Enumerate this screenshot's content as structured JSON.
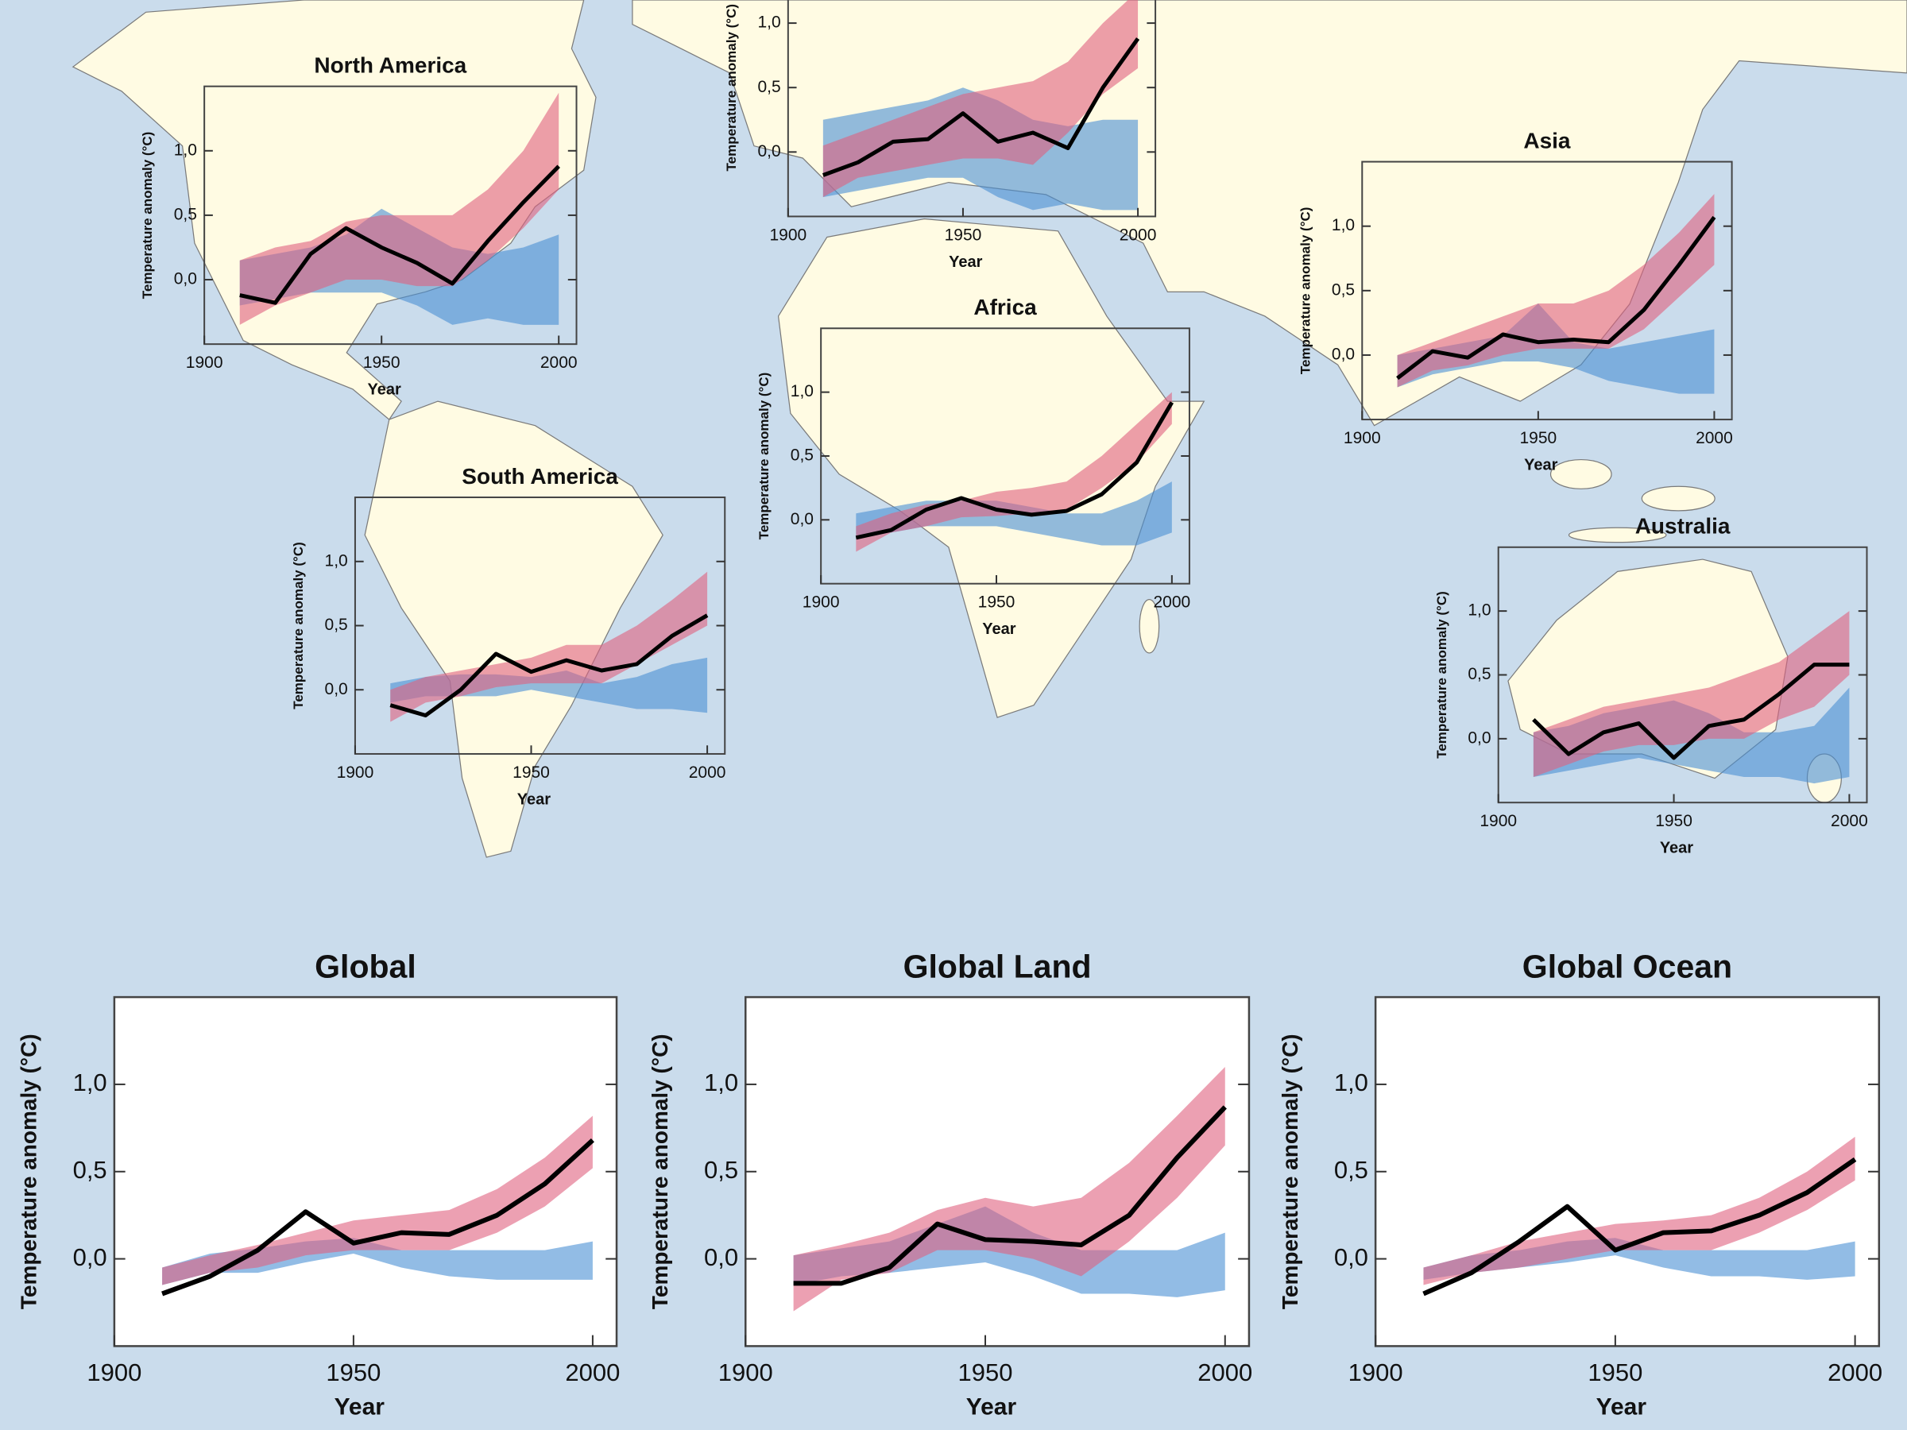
{
  "chart_data": [
    {
      "type": "line",
      "title": "North America",
      "xlabel": "Year",
      "ylabel": "Temperature anomaly (°C)",
      "x": [
        1910,
        1920,
        1930,
        1940,
        1950,
        1960,
        1970,
        1980,
        1990,
        2000
      ],
      "xlim": [
        1900,
        2005
      ],
      "ylim": [
        -0.5,
        1.5
      ],
      "xticks": [
        1900,
        1950,
        2000
      ],
      "yticks": [
        {
          "value": 0,
          "label": "0,0"
        },
        {
          "value": 0.5,
          "label": "0,5"
        },
        {
          "value": 1,
          "label": "1,0"
        }
      ],
      "series": [
        {
          "color": "#4a90d4",
          "upper": [
            0.15,
            0.2,
            0.25,
            0.35,
            0.55,
            0.4,
            0.25,
            0.2,
            0.25,
            0.35
          ],
          "lower": [
            -0.2,
            -0.15,
            -0.1,
            -0.1,
            -0.1,
            -0.2,
            -0.35,
            -0.3,
            -0.35,
            -0.35
          ]
        },
        {
          "color": "#e0607e",
          "upper": [
            0.15,
            0.25,
            0.3,
            0.45,
            0.5,
            0.5,
            0.5,
            0.7,
            1.0,
            1.45
          ],
          "lower": [
            -0.35,
            -0.2,
            -0.1,
            0.0,
            0.0,
            -0.05,
            -0.05,
            0.15,
            0.4,
            0.7
          ]
        },
        {
          "color": "#000000",
          "values": [
            -0.12,
            -0.18,
            0.2,
            0.4,
            0.25,
            0.13,
            -0.03,
            0.3,
            0.6,
            0.88
          ]
        }
      ]
    },
    {
      "type": "line",
      "xlabel": "Year",
      "ylabel": "Temperature anomaly (°C)",
      "x": [
        1910,
        1920,
        1930,
        1940,
        1950,
        1960,
        1970,
        1980,
        1990,
        2000
      ],
      "xlim": [
        1900,
        2005
      ],
      "ylim": [
        -0.5,
        1.5
      ],
      "xticks": [
        1900,
        1950,
        2000
      ],
      "yticks": [
        {
          "value": 0,
          "label": "0,0"
        },
        {
          "value": 0.5,
          "label": "0,5"
        },
        {
          "value": 1,
          "label": "1,0"
        }
      ],
      "series": [
        {
          "color": "#4a90d4",
          "upper": [
            0.25,
            0.3,
            0.35,
            0.4,
            0.5,
            0.4,
            0.25,
            0.2,
            0.25,
            0.25
          ],
          "lower": [
            -0.35,
            -0.3,
            -0.25,
            -0.2,
            -0.2,
            -0.35,
            -0.45,
            -0.4,
            -0.45,
            -0.45
          ]
        },
        {
          "color": "#e0607e",
          "upper": [
            0.05,
            0.15,
            0.25,
            0.35,
            0.45,
            0.5,
            0.55,
            0.7,
            1.0,
            1.25
          ],
          "lower": [
            -0.35,
            -0.2,
            -0.15,
            -0.1,
            -0.05,
            -0.05,
            -0.1,
            0.15,
            0.45,
            0.65
          ]
        },
        {
          "color": "#000000",
          "values": [
            -0.18,
            -0.08,
            0.08,
            0.1,
            0.3,
            0.08,
            0.15,
            0.03,
            0.5,
            0.88
          ]
        }
      ]
    },
    {
      "type": "line",
      "title": "Asia",
      "xlabel": "Year",
      "ylabel": "Temperature anomaly (°C)",
      "x": [
        1910,
        1920,
        1930,
        1940,
        1950,
        1960,
        1970,
        1980,
        1990,
        2000
      ],
      "xlim": [
        1900,
        2005
      ],
      "ylim": [
        -0.5,
        1.5
      ],
      "xticks": [
        1900,
        1950,
        2000
      ],
      "yticks": [
        {
          "value": 0,
          "label": "0,0"
        },
        {
          "value": 0.5,
          "label": "0,5"
        },
        {
          "value": 1,
          "label": "1,0"
        }
      ],
      "series": [
        {
          "color": "#4a90d4",
          "upper": [
            0.0,
            0.05,
            0.1,
            0.15,
            0.4,
            0.1,
            0.05,
            0.1,
            0.15,
            0.2
          ],
          "lower": [
            -0.25,
            -0.15,
            -0.1,
            -0.05,
            -0.05,
            -0.1,
            -0.2,
            -0.25,
            -0.3,
            -0.3
          ]
        },
        {
          "color": "#e0607e",
          "upper": [
            0.0,
            0.1,
            0.2,
            0.3,
            0.4,
            0.4,
            0.5,
            0.7,
            0.95,
            1.25
          ],
          "lower": [
            -0.25,
            -0.12,
            -0.08,
            0.0,
            0.05,
            0.05,
            0.05,
            0.2,
            0.45,
            0.7
          ]
        },
        {
          "color": "#000000",
          "values": [
            -0.18,
            0.03,
            -0.02,
            0.16,
            0.1,
            0.12,
            0.1,
            0.35,
            0.7,
            1.07
          ]
        }
      ]
    },
    {
      "type": "line",
      "title": "Africa",
      "xlabel": "Year",
      "ylabel": "Temperature anomaly (°C)",
      "x": [
        1910,
        1920,
        1930,
        1940,
        1950,
        1960,
        1970,
        1980,
        1990,
        2000
      ],
      "xlim": [
        1900,
        2005
      ],
      "ylim": [
        -0.5,
        1.5
      ],
      "xticks": [
        1900,
        1950,
        2000
      ],
      "yticks": [
        {
          "value": 0,
          "label": "0,0"
        },
        {
          "value": 0.5,
          "label": "0,5"
        },
        {
          "value": 1,
          "label": "1,0"
        }
      ],
      "series": [
        {
          "color": "#4a90d4",
          "upper": [
            0.05,
            0.1,
            0.15,
            0.15,
            0.15,
            0.1,
            0.05,
            0.05,
            0.15,
            0.3
          ],
          "lower": [
            -0.15,
            -0.1,
            -0.05,
            -0.05,
            -0.05,
            -0.1,
            -0.15,
            -0.2,
            -0.2,
            -0.1
          ]
        },
        {
          "color": "#e0607e",
          "upper": [
            -0.05,
            0.05,
            0.12,
            0.15,
            0.22,
            0.25,
            0.3,
            0.5,
            0.75,
            1.0
          ],
          "lower": [
            -0.25,
            -0.1,
            -0.05,
            0.02,
            0.03,
            0.05,
            0.08,
            0.25,
            0.45,
            0.75
          ]
        },
        {
          "color": "#000000",
          "values": [
            -0.14,
            -0.08,
            0.08,
            0.17,
            0.08,
            0.04,
            0.07,
            0.2,
            0.45,
            0.92
          ]
        }
      ]
    },
    {
      "type": "line",
      "title": "South America",
      "xlabel": "Year",
      "ylabel": "Temperature anomaly (°C)",
      "x": [
        1910,
        1920,
        1930,
        1940,
        1950,
        1960,
        1970,
        1980,
        1990,
        2000
      ],
      "xlim": [
        1900,
        2005
      ],
      "ylim": [
        -0.5,
        1.5
      ],
      "xticks": [
        1900,
        1950,
        2000
      ],
      "yticks": [
        {
          "value": 0,
          "label": "0,0"
        },
        {
          "value": 0.5,
          "label": "0,5"
        },
        {
          "value": 1,
          "label": "1,0"
        }
      ],
      "series": [
        {
          "color": "#4a90d4",
          "upper": [
            0.05,
            0.1,
            0.12,
            0.12,
            0.1,
            0.15,
            0.05,
            0.1,
            0.2,
            0.25
          ],
          "lower": [
            -0.1,
            -0.05,
            -0.05,
            -0.05,
            0.0,
            -0.05,
            -0.1,
            -0.15,
            -0.15,
            -0.18
          ]
        },
        {
          "color": "#e0607e",
          "upper": [
            0.0,
            0.1,
            0.15,
            0.2,
            0.25,
            0.35,
            0.35,
            0.5,
            0.7,
            0.92
          ],
          "lower": [
            -0.25,
            -0.1,
            -0.05,
            0.02,
            0.05,
            0.05,
            0.05,
            0.2,
            0.35,
            0.5
          ]
        },
        {
          "color": "#000000",
          "values": [
            -0.12,
            -0.2,
            0.0,
            0.28,
            0.14,
            0.23,
            0.15,
            0.2,
            0.42,
            0.58
          ]
        }
      ]
    },
    {
      "type": "line",
      "title": "Australia",
      "xlabel": "Year",
      "ylabel": "Temperature anomaly (°C)",
      "x": [
        1910,
        1920,
        1930,
        1940,
        1950,
        1960,
        1970,
        1980,
        1990,
        2000
      ],
      "xlim": [
        1900,
        2005
      ],
      "ylim": [
        -0.5,
        1.5
      ],
      "xticks": [
        1900,
        1950,
        2000
      ],
      "yticks": [
        {
          "value": 0,
          "label": "0,0"
        },
        {
          "value": 0.5,
          "label": "0,5"
        },
        {
          "value": 1,
          "label": "1,0"
        }
      ],
      "series": [
        {
          "color": "#4a90d4",
          "upper": [
            0.05,
            0.1,
            0.2,
            0.25,
            0.3,
            0.2,
            0.05,
            0.05,
            0.1,
            0.4
          ],
          "lower": [
            -0.3,
            -0.25,
            -0.2,
            -0.15,
            -0.2,
            -0.25,
            -0.3,
            -0.3,
            -0.35,
            -0.3
          ]
        },
        {
          "color": "#e0607e",
          "upper": [
            0.05,
            0.15,
            0.25,
            0.3,
            0.35,
            0.4,
            0.5,
            0.6,
            0.8,
            1.0
          ],
          "lower": [
            -0.3,
            -0.2,
            -0.1,
            -0.05,
            -0.05,
            0.0,
            0.0,
            0.15,
            0.25,
            0.5
          ]
        },
        {
          "color": "#000000",
          "values": [
            0.15,
            -0.12,
            0.05,
            0.12,
            -0.15,
            0.1,
            0.15,
            0.35,
            0.58,
            0.58
          ]
        }
      ]
    },
    {
      "type": "line",
      "title": "Global",
      "xlabel": "Year",
      "ylabel": "Temperature anomaly (°C)",
      "x": [
        1910,
        1920,
        1930,
        1940,
        1950,
        1960,
        1970,
        1980,
        1990,
        2000
      ],
      "xlim": [
        1900,
        2005
      ],
      "ylim": [
        -0.5,
        1.5
      ],
      "xticks": [
        1900,
        1950,
        2000
      ],
      "yticks": [
        {
          "value": 0,
          "label": "0,0"
        },
        {
          "value": 0.5,
          "label": "0,5"
        },
        {
          "value": 1,
          "label": "1,0"
        }
      ],
      "series": [
        {
          "color": "#4a90d4",
          "upper": [
            -0.05,
            0.03,
            0.06,
            0.1,
            0.12,
            0.05,
            0.05,
            0.05,
            0.05,
            0.1
          ],
          "lower": [
            -0.15,
            -0.08,
            -0.08,
            -0.02,
            0.03,
            -0.05,
            -0.1,
            -0.12,
            -0.12,
            -0.12
          ]
        },
        {
          "color": "#e0607e",
          "upper": [
            -0.05,
            0.02,
            0.08,
            0.15,
            0.22,
            0.25,
            0.28,
            0.4,
            0.58,
            0.82
          ],
          "lower": [
            -0.15,
            -0.08,
            -0.05,
            0.02,
            0.05,
            0.05,
            0.05,
            0.15,
            0.3,
            0.52
          ]
        },
        {
          "color": "#000000",
          "values": [
            -0.2,
            -0.1,
            0.05,
            0.27,
            0.09,
            0.15,
            0.14,
            0.25,
            0.43,
            0.68
          ]
        }
      ]
    },
    {
      "type": "line",
      "title": "Global Land",
      "xlabel": "Year",
      "ylabel": "Temperature anomaly (°C)",
      "x": [
        1910,
        1920,
        1930,
        1940,
        1950,
        1960,
        1970,
        1980,
        1990,
        2000
      ],
      "xlim": [
        1900,
        2005
      ],
      "ylim": [
        -0.5,
        1.5
      ],
      "xticks": [
        1900,
        1950,
        2000
      ],
      "yticks": [
        {
          "value": 0,
          "label": "0,0"
        },
        {
          "value": 0.5,
          "label": "0,5"
        },
        {
          "value": 1,
          "label": "1,0"
        }
      ],
      "series": [
        {
          "color": "#4a90d4",
          "upper": [
            0.02,
            0.06,
            0.1,
            0.2,
            0.3,
            0.15,
            0.05,
            0.05,
            0.05,
            0.15
          ],
          "lower": [
            -0.15,
            -0.1,
            -0.08,
            -0.05,
            -0.02,
            -0.1,
            -0.2,
            -0.2,
            -0.22,
            -0.18
          ]
        },
        {
          "color": "#e0607e",
          "upper": [
            0.02,
            0.08,
            0.15,
            0.28,
            0.35,
            0.3,
            0.35,
            0.55,
            0.82,
            1.1
          ],
          "lower": [
            -0.3,
            -0.12,
            -0.08,
            0.05,
            0.05,
            0.0,
            -0.1,
            0.1,
            0.35,
            0.65
          ]
        },
        {
          "color": "#000000",
          "values": [
            -0.14,
            -0.14,
            -0.05,
            0.2,
            0.11,
            0.1,
            0.08,
            0.25,
            0.58,
            0.87
          ]
        }
      ]
    },
    {
      "type": "line",
      "title": "Global Ocean",
      "xlabel": "Year",
      "ylabel": "Temperature anomaly (°C)",
      "x": [
        1910,
        1920,
        1930,
        1940,
        1950,
        1960,
        1970,
        1980,
        1990,
        2000
      ],
      "xlim": [
        1900,
        2005
      ],
      "ylim": [
        -0.5,
        1.5
      ],
      "xticks": [
        1900,
        1950,
        2000
      ],
      "yticks": [
        {
          "value": 0,
          "label": "0,0"
        },
        {
          "value": 0.5,
          "label": "0,5"
        },
        {
          "value": 1,
          "label": "1,0"
        }
      ],
      "series": [
        {
          "color": "#4a90d4",
          "upper": [
            -0.05,
            0.02,
            0.05,
            0.1,
            0.12,
            0.05,
            0.05,
            0.05,
            0.05,
            0.1
          ],
          "lower": [
            -0.12,
            -0.08,
            -0.05,
            -0.02,
            0.02,
            -0.05,
            -0.1,
            -0.1,
            -0.12,
            -0.1
          ]
        },
        {
          "color": "#e0607e",
          "upper": [
            -0.05,
            0.02,
            0.1,
            0.15,
            0.2,
            0.22,
            0.25,
            0.35,
            0.5,
            0.7
          ],
          "lower": [
            -0.15,
            -0.08,
            -0.05,
            0.0,
            0.05,
            0.05,
            0.05,
            0.15,
            0.28,
            0.45
          ]
        },
        {
          "color": "#000000",
          "values": [
            -0.2,
            -0.08,
            0.1,
            0.3,
            0.05,
            0.15,
            0.16,
            0.25,
            0.38,
            0.57
          ]
        }
      ]
    }
  ]
}
